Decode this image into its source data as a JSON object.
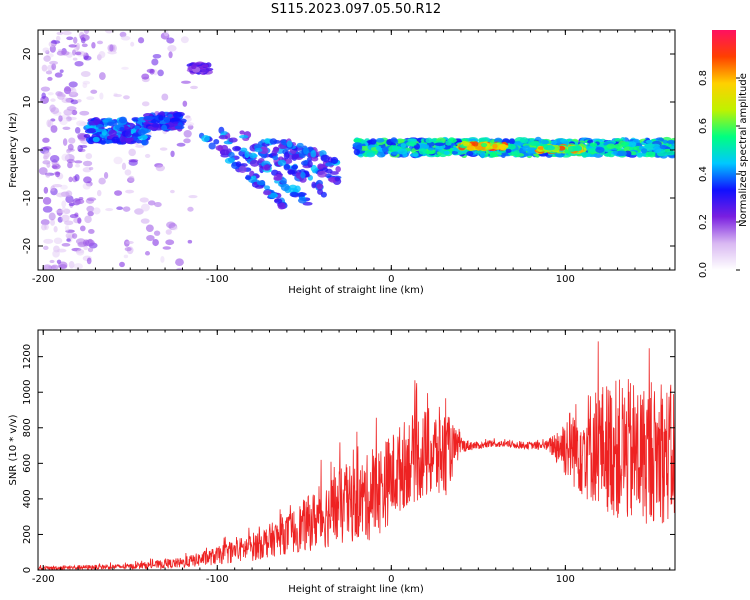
{
  "figure": {
    "title": "S115.2023.097.05.50.R12"
  },
  "chart_data": [
    {
      "type": "heatmap",
      "xlabel": "Height of straight line (km)",
      "ylabel": "Frequency (Hz)",
      "xlim": [
        -203,
        163
      ],
      "ylim": [
        -25,
        25
      ],
      "x_ticks": [
        -200,
        -100,
        0,
        100
      ],
      "y_ticks": [
        -20,
        -10,
        0,
        10,
        20
      ],
      "colorbar": {
        "label": "Normalized spectral amplitude",
        "range": [
          0,
          1
        ],
        "ticks": [
          0.0,
          0.2,
          0.4,
          0.6,
          0.8
        ],
        "tick_labels": [
          "0.0",
          "0.2",
          "0.4",
          "0.6",
          "0.8"
        ],
        "colors": [
          "#ffffff",
          "#d9b8f2",
          "#7a1fe0",
          "#1010ff",
          "#00c8ff",
          "#00ff80",
          "#bff200",
          "#ffd000",
          "#ff4000",
          "#ff1060"
        ]
      },
      "features": [
        {
          "x": [
            -200,
            -172
          ],
          "y_center": 0,
          "y_spread": 25,
          "amplitude": 0.15,
          "description": "diffuse noise"
        },
        {
          "x": [
            -175,
            -140
          ],
          "y_center": 4,
          "y_spread": 3,
          "amplitude": 0.45
        },
        {
          "x": [
            -140,
            -120
          ],
          "y_center": 6,
          "y_spread": 2,
          "amplitude": 0.4
        },
        {
          "x": [
            -115,
            -105
          ],
          "y_center": 17,
          "y_spread": 1,
          "amplitude": 0.3
        },
        {
          "x": [
            -110,
            -30
          ],
          "y_center_start": 4,
          "y_center_end": -12,
          "amplitude": 0.3,
          "description": "descending branches"
        },
        {
          "x": [
            -20,
            163
          ],
          "y_center": 0.5,
          "y_spread": 2,
          "amplitude": 0.6,
          "description": "main band"
        },
        {
          "x": [
            40,
            65
          ],
          "y_center": 0.8,
          "amplitude": 0.95
        },
        {
          "x": [
            85,
            110
          ],
          "y_center": 0.2,
          "amplitude": 0.9
        }
      ]
    },
    {
      "type": "line",
      "xlabel": "Height of straight line (km)",
      "ylabel": "SNR (10 * v/v)",
      "xlim": [
        -203,
        163
      ],
      "ylim": [
        0,
        1350
      ],
      "x_ticks": [
        -200,
        -100,
        0,
        100
      ],
      "y_ticks": [
        0,
        200,
        400,
        600,
        800,
        1000,
        1200
      ],
      "series": [
        {
          "color": "#ee2222",
          "envelope": {
            "x": [
              -203,
              -150,
              -120,
              -100,
              -80,
              -60,
              -50,
              -40,
              -30,
              -20,
              -10,
              0,
              10,
              20,
              30,
              40,
              50,
              60,
              70,
              80,
              90,
              100,
              110,
              120,
              130,
              140,
              150,
              163
            ],
            "mean": [
              10,
              20,
              40,
              80,
              130,
              200,
              250,
              300,
              350,
              380,
              420,
              520,
              620,
              650,
              650,
              700,
              700,
              710,
              705,
              700,
              700,
              700,
              700,
              700,
              680,
              650,
              650,
              650
            ],
            "amp": [
              10,
              15,
              30,
              50,
              80,
              110,
              150,
              180,
              220,
              220,
              260,
              250,
              250,
              260,
              270,
              40,
              20,
              20,
              20,
              20,
              30,
              180,
              300,
              350,
              400,
              420,
              380,
              400
            ]
          }
        }
      ]
    }
  ]
}
